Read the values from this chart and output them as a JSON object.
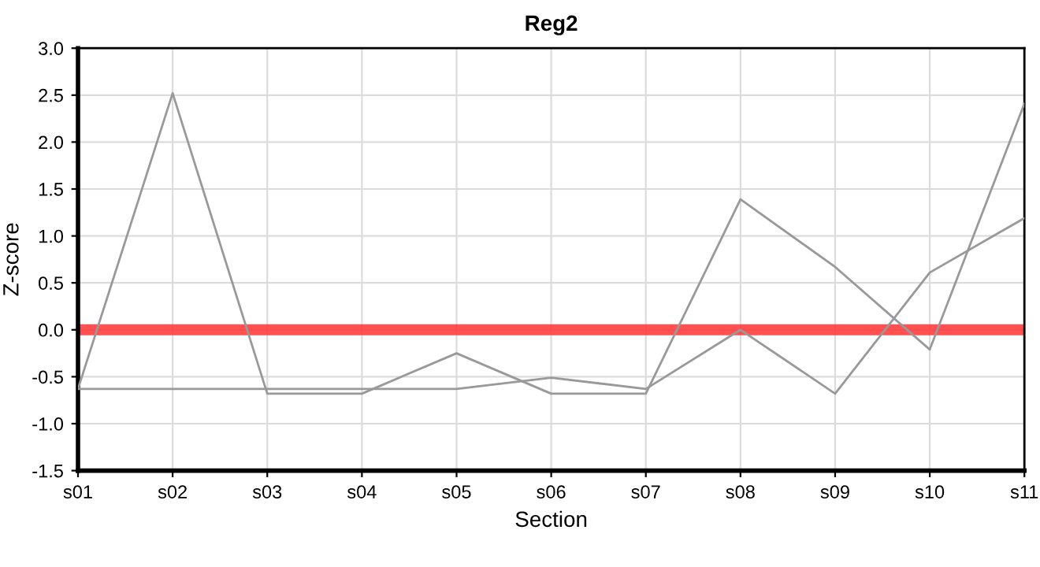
{
  "chart_data": {
    "type": "line",
    "title": "Reg2",
    "xlabel": "Section",
    "ylabel": "Z-score",
    "categories": [
      "s01",
      "s02",
      "s03",
      "s04",
      "s05",
      "s06",
      "s07",
      "s08",
      "s09",
      "s10",
      "s11"
    ],
    "series": [
      {
        "color": "#999999",
        "values": [
          -0.63,
          2.52,
          -0.68,
          -0.68,
          -0.25,
          -0.68,
          -0.68,
          1.39,
          0.67,
          -0.21,
          2.41
        ]
      },
      {
        "color": "#999999",
        "values": [
          -0.63,
          -0.63,
          -0.63,
          -0.63,
          -0.63,
          -0.51,
          -0.63,
          0.0,
          -0.68,
          0.61,
          1.19
        ]
      }
    ],
    "ylim": [
      -1.5,
      3.0
    ],
    "yticks": [
      {
        "value": -1.5,
        "label": "-1.5"
      },
      {
        "value": -1.0,
        "label": "-1.0"
      },
      {
        "value": -0.5,
        "label": "-0.5"
      },
      {
        "value": 0.0,
        "label": "0.0"
      },
      {
        "value": 0.5,
        "label": "0.5"
      },
      {
        "value": 1.0,
        "label": "1.0"
      },
      {
        "value": 1.5,
        "label": "1.5"
      },
      {
        "value": 2.0,
        "label": "2.0"
      },
      {
        "value": 2.5,
        "label": "2.5"
      },
      {
        "value": 3.0,
        "label": "3.0"
      }
    ],
    "ref_lines": [
      {
        "axis": "y",
        "value": 0.0,
        "color": "#ff3333"
      }
    ],
    "grid": true,
    "legend": false
  }
}
